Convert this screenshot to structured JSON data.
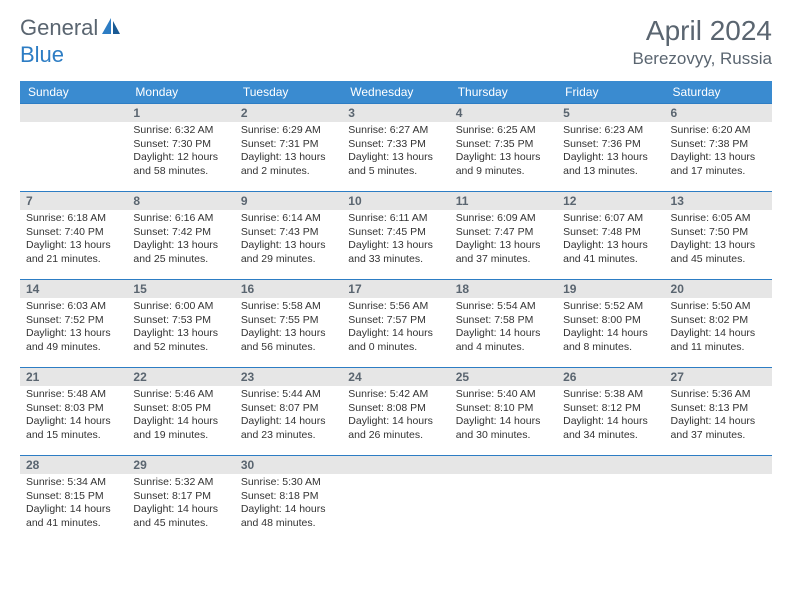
{
  "logo": {
    "text_general": "General",
    "text_blue": "Blue"
  },
  "title": "April 2024",
  "location": "Berezovyy, Russia",
  "colors": {
    "header_bg": "#3a8bd0",
    "header_text": "#ffffff",
    "daybar_bg": "#e6e6e6",
    "daybar_border": "#2d7dc4",
    "body_text": "#333333",
    "title_text": "#5a6570"
  },
  "day_headers": [
    "Sunday",
    "Monday",
    "Tuesday",
    "Wednesday",
    "Thursday",
    "Friday",
    "Saturday"
  ],
  "weeks": [
    [
      {
        "num": "",
        "sunrise": "",
        "sunset": "",
        "daylight": ""
      },
      {
        "num": "1",
        "sunrise": "Sunrise: 6:32 AM",
        "sunset": "Sunset: 7:30 PM",
        "daylight": "Daylight: 12 hours and 58 minutes."
      },
      {
        "num": "2",
        "sunrise": "Sunrise: 6:29 AM",
        "sunset": "Sunset: 7:31 PM",
        "daylight": "Daylight: 13 hours and 2 minutes."
      },
      {
        "num": "3",
        "sunrise": "Sunrise: 6:27 AM",
        "sunset": "Sunset: 7:33 PM",
        "daylight": "Daylight: 13 hours and 5 minutes."
      },
      {
        "num": "4",
        "sunrise": "Sunrise: 6:25 AM",
        "sunset": "Sunset: 7:35 PM",
        "daylight": "Daylight: 13 hours and 9 minutes."
      },
      {
        "num": "5",
        "sunrise": "Sunrise: 6:23 AM",
        "sunset": "Sunset: 7:36 PM",
        "daylight": "Daylight: 13 hours and 13 minutes."
      },
      {
        "num": "6",
        "sunrise": "Sunrise: 6:20 AM",
        "sunset": "Sunset: 7:38 PM",
        "daylight": "Daylight: 13 hours and 17 minutes."
      }
    ],
    [
      {
        "num": "7",
        "sunrise": "Sunrise: 6:18 AM",
        "sunset": "Sunset: 7:40 PM",
        "daylight": "Daylight: 13 hours and 21 minutes."
      },
      {
        "num": "8",
        "sunrise": "Sunrise: 6:16 AM",
        "sunset": "Sunset: 7:42 PM",
        "daylight": "Daylight: 13 hours and 25 minutes."
      },
      {
        "num": "9",
        "sunrise": "Sunrise: 6:14 AM",
        "sunset": "Sunset: 7:43 PM",
        "daylight": "Daylight: 13 hours and 29 minutes."
      },
      {
        "num": "10",
        "sunrise": "Sunrise: 6:11 AM",
        "sunset": "Sunset: 7:45 PM",
        "daylight": "Daylight: 13 hours and 33 minutes."
      },
      {
        "num": "11",
        "sunrise": "Sunrise: 6:09 AM",
        "sunset": "Sunset: 7:47 PM",
        "daylight": "Daylight: 13 hours and 37 minutes."
      },
      {
        "num": "12",
        "sunrise": "Sunrise: 6:07 AM",
        "sunset": "Sunset: 7:48 PM",
        "daylight": "Daylight: 13 hours and 41 minutes."
      },
      {
        "num": "13",
        "sunrise": "Sunrise: 6:05 AM",
        "sunset": "Sunset: 7:50 PM",
        "daylight": "Daylight: 13 hours and 45 minutes."
      }
    ],
    [
      {
        "num": "14",
        "sunrise": "Sunrise: 6:03 AM",
        "sunset": "Sunset: 7:52 PM",
        "daylight": "Daylight: 13 hours and 49 minutes."
      },
      {
        "num": "15",
        "sunrise": "Sunrise: 6:00 AM",
        "sunset": "Sunset: 7:53 PM",
        "daylight": "Daylight: 13 hours and 52 minutes."
      },
      {
        "num": "16",
        "sunrise": "Sunrise: 5:58 AM",
        "sunset": "Sunset: 7:55 PM",
        "daylight": "Daylight: 13 hours and 56 minutes."
      },
      {
        "num": "17",
        "sunrise": "Sunrise: 5:56 AM",
        "sunset": "Sunset: 7:57 PM",
        "daylight": "Daylight: 14 hours and 0 minutes."
      },
      {
        "num": "18",
        "sunrise": "Sunrise: 5:54 AM",
        "sunset": "Sunset: 7:58 PM",
        "daylight": "Daylight: 14 hours and 4 minutes."
      },
      {
        "num": "19",
        "sunrise": "Sunrise: 5:52 AM",
        "sunset": "Sunset: 8:00 PM",
        "daylight": "Daylight: 14 hours and 8 minutes."
      },
      {
        "num": "20",
        "sunrise": "Sunrise: 5:50 AM",
        "sunset": "Sunset: 8:02 PM",
        "daylight": "Daylight: 14 hours and 11 minutes."
      }
    ],
    [
      {
        "num": "21",
        "sunrise": "Sunrise: 5:48 AM",
        "sunset": "Sunset: 8:03 PM",
        "daylight": "Daylight: 14 hours and 15 minutes."
      },
      {
        "num": "22",
        "sunrise": "Sunrise: 5:46 AM",
        "sunset": "Sunset: 8:05 PM",
        "daylight": "Daylight: 14 hours and 19 minutes."
      },
      {
        "num": "23",
        "sunrise": "Sunrise: 5:44 AM",
        "sunset": "Sunset: 8:07 PM",
        "daylight": "Daylight: 14 hours and 23 minutes."
      },
      {
        "num": "24",
        "sunrise": "Sunrise: 5:42 AM",
        "sunset": "Sunset: 8:08 PM",
        "daylight": "Daylight: 14 hours and 26 minutes."
      },
      {
        "num": "25",
        "sunrise": "Sunrise: 5:40 AM",
        "sunset": "Sunset: 8:10 PM",
        "daylight": "Daylight: 14 hours and 30 minutes."
      },
      {
        "num": "26",
        "sunrise": "Sunrise: 5:38 AM",
        "sunset": "Sunset: 8:12 PM",
        "daylight": "Daylight: 14 hours and 34 minutes."
      },
      {
        "num": "27",
        "sunrise": "Sunrise: 5:36 AM",
        "sunset": "Sunset: 8:13 PM",
        "daylight": "Daylight: 14 hours and 37 minutes."
      }
    ],
    [
      {
        "num": "28",
        "sunrise": "Sunrise: 5:34 AM",
        "sunset": "Sunset: 8:15 PM",
        "daylight": "Daylight: 14 hours and 41 minutes."
      },
      {
        "num": "29",
        "sunrise": "Sunrise: 5:32 AM",
        "sunset": "Sunset: 8:17 PM",
        "daylight": "Daylight: 14 hours and 45 minutes."
      },
      {
        "num": "30",
        "sunrise": "Sunrise: 5:30 AM",
        "sunset": "Sunset: 8:18 PM",
        "daylight": "Daylight: 14 hours and 48 minutes."
      },
      {
        "num": "",
        "sunrise": "",
        "sunset": "",
        "daylight": ""
      },
      {
        "num": "",
        "sunrise": "",
        "sunset": "",
        "daylight": ""
      },
      {
        "num": "",
        "sunrise": "",
        "sunset": "",
        "daylight": ""
      },
      {
        "num": "",
        "sunrise": "",
        "sunset": "",
        "daylight": ""
      }
    ]
  ]
}
